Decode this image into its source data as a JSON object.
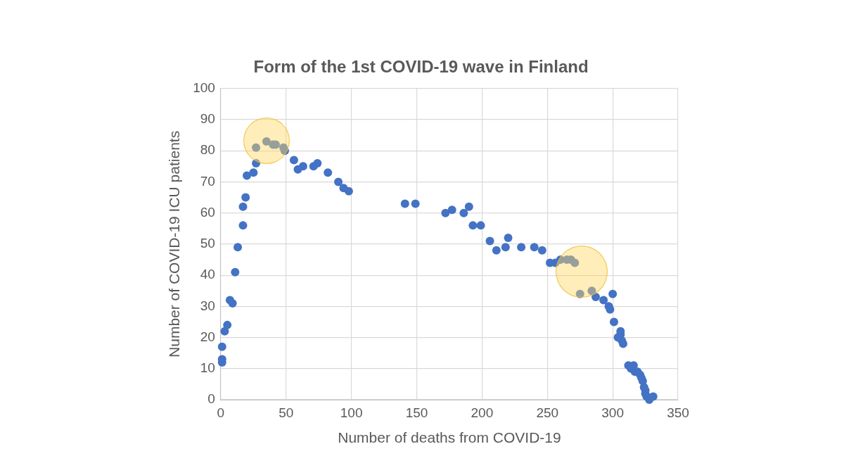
{
  "chart_data": {
    "type": "scatter",
    "title": "Form of the 1st COVID-19 wave in Finland",
    "xlabel": "Number of deaths from COVID-19",
    "ylabel": "Number of COVID-19 ICU patients",
    "x": [
      1,
      1,
      1,
      3,
      5,
      7,
      9,
      11,
      13,
      17,
      17,
      19,
      20,
      25,
      27,
      27,
      35,
      40,
      42,
      48,
      49,
      56,
      59,
      63,
      71,
      74,
      82,
      90,
      94,
      98,
      141,
      149,
      172,
      177,
      186,
      190,
      193,
      199,
      206,
      211,
      218,
      220,
      230,
      240,
      246,
      252,
      256,
      260,
      265,
      268,
      271,
      275,
      284,
      287,
      293,
      297,
      298,
      300,
      301,
      304,
      306,
      306,
      307,
      308,
      312,
      314,
      316,
      317,
      319,
      321,
      322,
      323,
      324,
      325,
      325,
      326,
      328,
      331
    ],
    "series": [
      {
        "color": "#4472c4",
        "values": [
          13,
          12,
          17,
          22,
          24,
          32,
          31,
          41,
          49,
          56,
          62,
          65,
          72,
          73,
          76,
          81,
          83,
          82,
          82,
          81,
          80,
          77,
          74,
          75,
          75,
          76,
          73,
          70,
          68,
          67,
          63,
          63,
          60,
          61,
          60,
          62,
          56,
          56,
          51,
          48,
          49,
          52,
          49,
          49,
          48,
          44,
          44,
          45,
          45,
          45,
          44,
          34,
          35,
          33,
          32,
          30,
          29,
          34,
          25,
          20,
          22,
          21,
          19,
          18,
          11,
          10,
          11,
          9,
          9,
          8,
          7,
          6,
          4,
          3,
          2,
          1,
          0,
          1
        ]
      }
    ],
    "xlim": [
      0,
      350
    ],
    "ylim": [
      0,
      100
    ],
    "xticks": [
      0,
      50,
      100,
      150,
      200,
      250,
      300,
      350
    ],
    "yticks": [
      0,
      10,
      20,
      30,
      40,
      50,
      60,
      70,
      80,
      90,
      100
    ],
    "grid": true,
    "legend": false,
    "marker": "circle"
  }
}
